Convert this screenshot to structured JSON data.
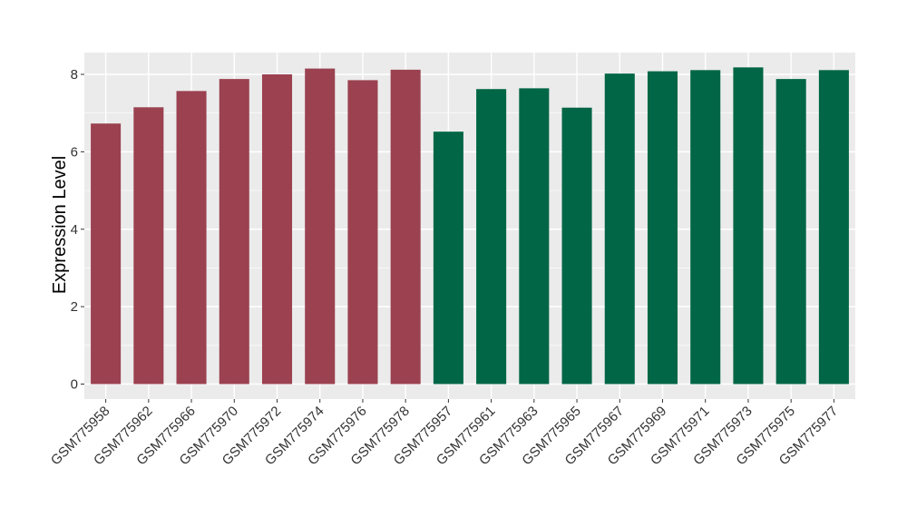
{
  "chart_data": {
    "type": "bar",
    "title": "",
    "xlabel": "",
    "ylabel": "Expression Level",
    "ylim": [
      0,
      8.5
    ],
    "yticks": [
      0,
      2,
      4,
      6,
      8
    ],
    "grid": true,
    "legend": "none",
    "categories": [
      "GSM775958",
      "GSM775962",
      "GSM775966",
      "GSM775970",
      "GSM775972",
      "GSM775974",
      "GSM775976",
      "GSM775978",
      "GSM775957",
      "GSM775961",
      "GSM775963",
      "GSM775965",
      "GSM775967",
      "GSM775969",
      "GSM775971",
      "GSM775973",
      "GSM775975",
      "GSM775977"
    ],
    "values": [
      6.73,
      7.15,
      7.57,
      7.88,
      8.0,
      8.15,
      7.85,
      8.12,
      6.52,
      7.62,
      7.64,
      7.14,
      8.02,
      8.08,
      8.11,
      8.18,
      7.88,
      8.11
    ],
    "group_colors": [
      "#9b4150",
      "#9b4150",
      "#9b4150",
      "#9b4150",
      "#9b4150",
      "#9b4150",
      "#9b4150",
      "#9b4150",
      "#006645",
      "#006645",
      "#006645",
      "#006645",
      "#006645",
      "#006645",
      "#006645",
      "#006645",
      "#006645",
      "#006645"
    ],
    "panel_background": "#ebebeb",
    "grid_color": "#ffffff"
  }
}
